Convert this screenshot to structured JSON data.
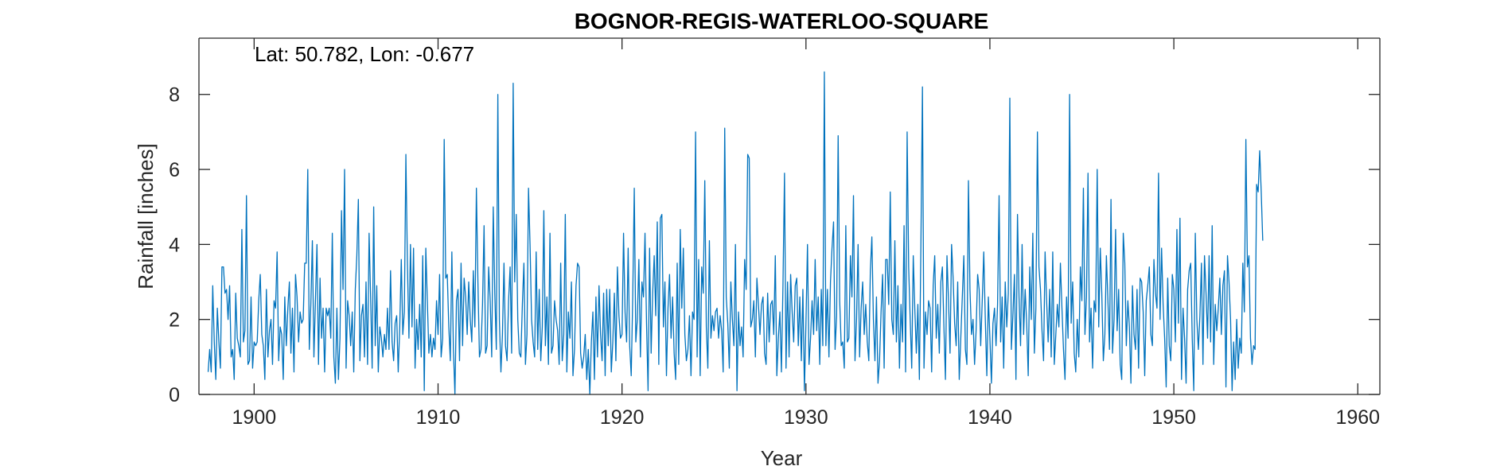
{
  "chart_data": {
    "type": "line",
    "title": "BOGNOR-REGIS-WATERLOO-SQUARE",
    "annotation": "Lat: 50.782, Lon: -0.677",
    "xlabel": "Year",
    "ylabel": "Rainfall [inches]",
    "xlim": [
      1897,
      1961.2
    ],
    "ylim": [
      0,
      9.5
    ],
    "xticks": [
      1900,
      1910,
      1920,
      1930,
      1940,
      1950,
      1960
    ],
    "yticks": [
      0,
      2,
      4,
      6,
      8
    ],
    "grid": false,
    "line_color": "#0072BD",
    "series": [
      {
        "x_start": 1897.5,
        "x_step_months": 1,
        "values": [
          0.6,
          1.2,
          0.6,
          2.9,
          1.4,
          0.4,
          2.3,
          1.4,
          0.7,
          3.4,
          3.4,
          2.7,
          2.8,
          2.0,
          2.9,
          1.0,
          1.2,
          0.4,
          2.7,
          1.5,
          1.3,
          1.0,
          4.4,
          1.4,
          1.7,
          5.3,
          0.8,
          0.9,
          2.6,
          0.7,
          1.4,
          1.3,
          1.4,
          2.5,
          3.2,
          1.6,
          1.3,
          0.4,
          2.8,
          1.0,
          1.7,
          2.0,
          0.8,
          2.5,
          2.3,
          3.8,
          0.9,
          1.8,
          1.6,
          0.4,
          2.6,
          1.3,
          2.3,
          3.0,
          1.1,
          2.3,
          0.6,
          3.2,
          2.6,
          1.4,
          2.2,
          1.9,
          2.0,
          3.5,
          3.5,
          6.0,
          1.2,
          2.4,
          4.1,
          1.0,
          2.5,
          4.0,
          0.8,
          3.1,
          1.5,
          2.3,
          0.6,
          2.3,
          2.1,
          2.3,
          1.5,
          4.3,
          1.0,
          0.3,
          2.3,
          0.4,
          1.5,
          4.9,
          2.8,
          6.0,
          0.7,
          2.5,
          2.1,
          1.3,
          2.2,
          0.6,
          2.8,
          3.7,
          5.2,
          0.9,
          2.1,
          2.4,
          1.0,
          3.0,
          0.8,
          4.3,
          2.6,
          0.7,
          5.0,
          1.3,
          2.9,
          0.6,
          1.8,
          1.5,
          1.0,
          1.6,
          1.2,
          2.3,
          1.2,
          3.3,
          1.4,
          0.9,
          1.9,
          2.1,
          0.6,
          1.8,
          3.6,
          1.6,
          2.2,
          6.4,
          3.5,
          1.5,
          4.0,
          1.8,
          3.9,
          0.7,
          2.0,
          1.2,
          2.4,
          1.0,
          3.7,
          0.1,
          3.9,
          2.5,
          1.1,
          1.6,
          1.0,
          1.5,
          1.2,
          2.5,
          1.6,
          3.2,
          1.0,
          1.5,
          6.8,
          3.1,
          3.2,
          1.8,
          0.9,
          3.8,
          1.2,
          0.0,
          2.5,
          2.8,
          0.9,
          3.5,
          1.3,
          3.1,
          2.6,
          1.6,
          3.0,
          2.0,
          1.4,
          3.3,
          1.8,
          5.5,
          3.0,
          1.0,
          1.2,
          2.4,
          4.5,
          1.1,
          1.3,
          3.4,
          2.5,
          1.0,
          5.0,
          2.7,
          1.2,
          8.0,
          2.0,
          0.6,
          1.6,
          3.5,
          1.3,
          0.9,
          2.5,
          3.4,
          1.1,
          8.3,
          3.0,
          4.8,
          2.0,
          1.1,
          1.0,
          2.4,
          3.5,
          0.8,
          1.6,
          5.5,
          4.0,
          2.0,
          1.4,
          1.0,
          3.8,
          1.2,
          2.8,
          0.9,
          1.8,
          4.9,
          1.3,
          2.6,
          0.8,
          4.3,
          1.1,
          1.3,
          2.5,
          2.0,
          1.7,
          0.8,
          3.5,
          0.9,
          1.6,
          4.8,
          0.6,
          2.2,
          1.5,
          3.0,
          0.5,
          1.2,
          2.9,
          3.5,
          3.4,
          1.1,
          0.7,
          1.0,
          1.6,
          0.4,
          1.2,
          0.0,
          1.4,
          2.2,
          0.4,
          2.6,
          1.0,
          2.9,
          1.6,
          0.9,
          2.7,
          0.5,
          2.8,
          1.3,
          2.8,
          0.6,
          1.4,
          2.7,
          0.9,
          3.4,
          2.1,
          1.5,
          1.6,
          4.3,
          2.2,
          1.4,
          3.9,
          1.3,
          0.5,
          2.6,
          5.5,
          1.4,
          2.0,
          3.6,
          1.0,
          3.0,
          2.6,
          4.3,
          1.9,
          0.1,
          3.9,
          1.1,
          2.7,
          3.7,
          2.1,
          4.6,
          0.8,
          4.7,
          4.8,
          1.8,
          3.0,
          0.5,
          2.3,
          3.2,
          1.5,
          2.6,
          1.1,
          0.4,
          3.5,
          0.8,
          4.4,
          2.3,
          3.9,
          1.6,
          0.9,
          1.2,
          2.1,
          0.5,
          2.2,
          2.0,
          7.0,
          1.0,
          3.6,
          0.5,
          3.4,
          2.7,
          5.7,
          1.8,
          0.7,
          4.1,
          1.5,
          2.1,
          1.7,
          2.2,
          2.3,
          1.5,
          2.1,
          1.7,
          0.6,
          7.1,
          2.6,
          1.9,
          0.7,
          3.0,
          2.0,
          1.3,
          4.0,
          0.1,
          2.2,
          1.3,
          1.8,
          1.0,
          3.6,
          2.8,
          6.4,
          6.3,
          1.8,
          2.0,
          2.5,
          1.0,
          3.1,
          2.4,
          1.6,
          2.4,
          2.6,
          1.1,
          0.8,
          2.7,
          1.4,
          2.4,
          2.5,
          1.6,
          3.7,
          0.5,
          1.5,
          2.2,
          0.6,
          2.9,
          5.9,
          0.7,
          3.0,
          1.0,
          3.2,
          2.2,
          1.4,
          2.9,
          3.1,
          1.3,
          2.6,
          0.9,
          2.8,
          0.1,
          1.9,
          4.0,
          0.8,
          1.5,
          2.5,
          1.6,
          3.6,
          1.7,
          2.6,
          0.8,
          2.8,
          1.3,
          8.6,
          1.3,
          2.8,
          1.0,
          3.0,
          3.9,
          4.6,
          1.2,
          2.1,
          6.9,
          2.5,
          1.3,
          1.4,
          0.7,
          4.5,
          1.4,
          1.5,
          3.7,
          2.6,
          5.3,
          0.9,
          2.0,
          4.0,
          1.0,
          2.3,
          3.0,
          1.6,
          2.4,
          1.4,
          0.9,
          3.3,
          4.2,
          2.0,
          0.9,
          2.6,
          0.3,
          0.9,
          2.2,
          3.2,
          0.7,
          3.6,
          3.6,
          2.4,
          5.4,
          2.0,
          1.6,
          4.1,
          1.4,
          2.9,
          0.7,
          2.4,
          1.4,
          4.5,
          0.6,
          7.0,
          3.4,
          2.0,
          0.7,
          3.7,
          2.3,
          1.1,
          2.4,
          0.4,
          4.0,
          8.2,
          0.7,
          2.2,
          1.6,
          2.5,
          2.3,
          0.6,
          2.9,
          3.7,
          1.5,
          2.4,
          1.1,
          3.0,
          3.4,
          1.8,
          0.4,
          3.7,
          2.5,
          1.1,
          4.0,
          3.1,
          1.9,
          1.3,
          3.0,
          0.4,
          1.5,
          2.6,
          3.7,
          1.2,
          0.8,
          5.7,
          2.8,
          1.6,
          2.0,
          0.8,
          1.7,
          3.2,
          2.8,
          1.3,
          2.5,
          3.8,
          2.0,
          0.5,
          2.6,
          1.5,
          0.3,
          1.9,
          2.3,
          1.3,
          2.4,
          5.3,
          1.4,
          2.6,
          0.7,
          3.0,
          1.8,
          2.7,
          7.9,
          1.2,
          2.1,
          3.2,
          0.4,
          4.8,
          2.6,
          1.3,
          4.0,
          1.6,
          2.8,
          1.9,
          0.5,
          3.4,
          2.0,
          4.3,
          1.1,
          2.3,
          7.0,
          3.4,
          2.8,
          1.7,
          0.9,
          3.8,
          2.5,
          1.4,
          2.8,
          1.0,
          3.8,
          0.8,
          1.6,
          2.4,
          1.8,
          3.5,
          2.3,
          1.2,
          0.4,
          2.6,
          1.5,
          8.0,
          1.9,
          3.0,
          1.1,
          0.6,
          2.0,
          1.0,
          3.4,
          2.5,
          5.5,
          1.6,
          2.6,
          5.9,
          1.4,
          2.3,
          0.7,
          2.5,
          2.2,
          6.0,
          1.8,
          3.9,
          2.7,
          0.9,
          1.6,
          3.7,
          2.5,
          1.2,
          5.2,
          1.1,
          2.0,
          4.4,
          1.7,
          2.8,
          0.8,
          0.4,
          4.3,
          3.5,
          1.3,
          2.5,
          1.8,
          0.3,
          2.9,
          1.6,
          1.2,
          2.8,
          0.7,
          3.1,
          3.0,
          2.2,
          0.5,
          2.5,
          2.9,
          3.4,
          1.6,
          1.3,
          3.6,
          2.7,
          2.3,
          5.9,
          2.0,
          3.9,
          2.4,
          1.5,
          0.2,
          3.1,
          1.3,
          0.9,
          3.2,
          2.8,
          1.4,
          4.4,
          1.9,
          4.7,
          0.4,
          2.3,
          1.5,
          0.3,
          2.8,
          3.3,
          3.5,
          1.5,
          0.1,
          4.3,
          2.0,
          1.2,
          2.1,
          3.5,
          0.8,
          3.7,
          2.7,
          1.5,
          3.7,
          1.4,
          4.5,
          0.8,
          2.4,
          1.7,
          2.3,
          3.1,
          1.6,
          2.9,
          3.3,
          0.2,
          3.7,
          3.0,
          2.0,
          0.1,
          1.4,
          0.4,
          2.0,
          0.7,
          1.5,
          1.1,
          3.5,
          2.2,
          6.8,
          3.4,
          3.7,
          1.5,
          0.8,
          1.3,
          1.2,
          5.6,
          5.4,
          6.5,
          5.4,
          4.1
        ]
      }
    ]
  }
}
